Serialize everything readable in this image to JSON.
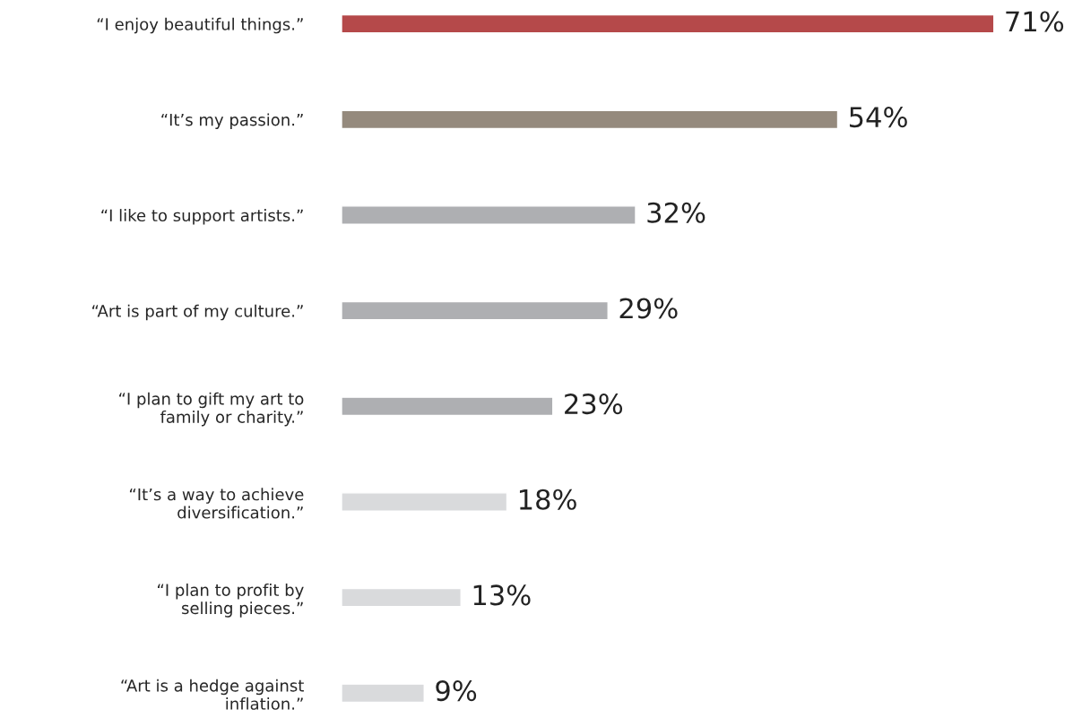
{
  "chart_data": {
    "type": "bar",
    "orientation": "horizontal",
    "categories": [
      "“I enjoy beautiful things.”",
      "“It’s my passion.”",
      "“I like to support artists.”",
      "“Art is part of my culture.”",
      "“I plan to gift my art to\nfamily or charity.”",
      "“It’s a way to achieve\ndiversification.”",
      "“I plan to profit by\nselling pieces.”",
      "“Art is a hedge against\ninflation.”"
    ],
    "values": [
      71,
      54,
      32,
      29,
      23,
      18,
      13,
      9
    ],
    "colors": [
      "#b5494a",
      "#958a7d",
      "#aeafb2",
      "#aeafb2",
      "#aeafb2",
      "#d9dadc",
      "#d9dadc",
      "#d9dadc"
    ],
    "value_labels": [
      "71%",
      "54%",
      "32%",
      "29%",
      "23%",
      "18%",
      "13%",
      "9%"
    ],
    "grid": false,
    "legend": false
  }
}
